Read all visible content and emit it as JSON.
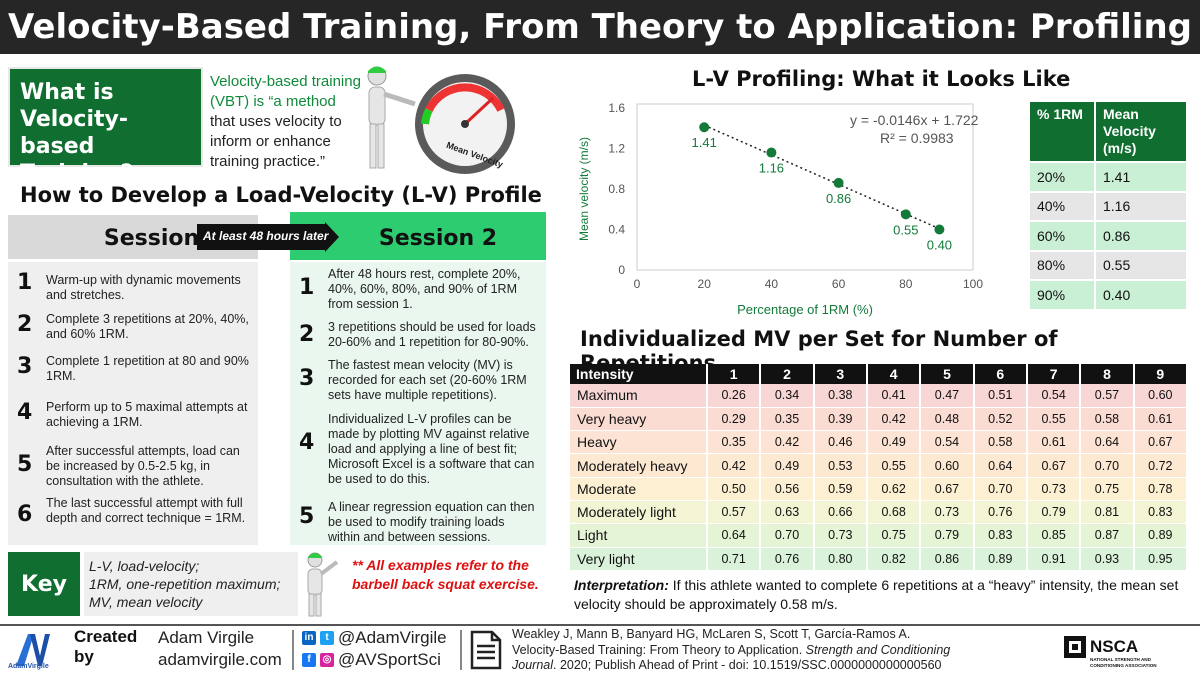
{
  "header": {
    "title": "Velocity-Based Training, From Theory to Application: Profiling"
  },
  "what": {
    "heading": "What is Velocity-based Training?",
    "definition_lines": [
      "Velocity-based training",
      "(VBT) is “a method",
      "that uses velocity to",
      "inform or enhance",
      "training practice.”"
    ],
    "gauge_label": "Mean Velocity"
  },
  "how": {
    "title": "How to Develop a Load-Velocity (L-V) Profile",
    "session1": "Session 1",
    "session2": "Session 2",
    "gap": "At least 48 hours later",
    "session1_steps": [
      {
        "n": "1",
        "text": "Warm-up with dynamic movements and stretches."
      },
      {
        "n": "2",
        "text": "Complete 3 repetitions at 20%, 40%, and 60% 1RM."
      },
      {
        "n": "3",
        "text": "Complete 1 repetition at 80 and 90% 1RM."
      },
      {
        "n": "4",
        "text": "Perform up to 5 maximal attempts at achieving a 1RM."
      },
      {
        "n": "5",
        "text": "After successful attempts, load can be increased by 0.5-2.5 kg, in consultation with the athlete."
      },
      {
        "n": "6",
        "text": "The last successful attempt with full depth and correct technique = 1RM."
      }
    ],
    "session2_steps": [
      {
        "n": "1",
        "text": "After 48 hours rest, complete 20%, 40%, 60%, 80%, and 90% of 1RM from session 1."
      },
      {
        "n": "2",
        "text": "3 repetitions should be used for loads 20-60% and 1 repetition for 80-90%."
      },
      {
        "n": "3",
        "text": "The fastest mean velocity (MV) is recorded for each set (20-60% 1RM sets have multiple repetitions)."
      },
      {
        "n": "4",
        "text": "Individualized L-V profiles can be made by plotting MV against relative load and applying a line of best fit; Microsoft Excel is a software that can be used to do this."
      },
      {
        "n": "5",
        "text": "A linear regression equation can then be used to modify training loads within and between sessions."
      }
    ]
  },
  "key": {
    "label": "Key",
    "lines": [
      "L-V, load-velocity;",
      "1RM, one-repetition maximum;",
      "MV, mean velocity"
    ],
    "note": "** All examples refer to the barbell back squat exercise."
  },
  "chart_data": {
    "type": "scatter",
    "title": "L-V Profiling: What it Looks Like",
    "xlabel": "Percentage of 1RM (%)",
    "ylabel": "Mean velocity (m/s)",
    "xlim": [
      0,
      100
    ],
    "ylim": [
      0,
      1.6
    ],
    "xticks": [
      0,
      20,
      40,
      60,
      80,
      100
    ],
    "yticks": [
      0,
      0.4,
      0.8,
      1.2,
      1.6
    ],
    "x": [
      20,
      40,
      60,
      80,
      90
    ],
    "y": [
      1.41,
      1.16,
      0.86,
      0.55,
      0.4
    ],
    "point_labels": [
      "1.41",
      "1.16",
      "0.86",
      "0.55",
      "0.40"
    ],
    "trendline": {
      "slope": -0.0146,
      "intercept": 1.722,
      "x_range": [
        20,
        90
      ]
    },
    "equation": "y = -0.0146x + 1.722",
    "r2": "R² = 0.9983",
    "color": "#137a3a"
  },
  "profile_table": {
    "headers": [
      "% 1RM",
      "Mean Velocity (m/s)"
    ],
    "rows": [
      [
        "20%",
        "1.41"
      ],
      [
        "40%",
        "1.16"
      ],
      [
        "60%",
        "0.86"
      ],
      [
        "80%",
        "0.55"
      ],
      [
        "90%",
        "0.40"
      ]
    ]
  },
  "reps_table": {
    "title": "Individualized MV per Set for Number of Repetitions",
    "headers": [
      "Intensity",
      "1",
      "2",
      "3",
      "4",
      "5",
      "6",
      "7",
      "8",
      "9"
    ],
    "rows": [
      {
        "intensity": "Maximum",
        "values": [
          "0.26",
          "0.34",
          "0.38",
          "0.41",
          "0.47",
          "0.51",
          "0.54",
          "0.57",
          "0.60"
        ],
        "color": "#f9d6d6"
      },
      {
        "intensity": "Very heavy",
        "values": [
          "0.29",
          "0.35",
          "0.39",
          "0.42",
          "0.48",
          "0.52",
          "0.55",
          "0.58",
          "0.61"
        ],
        "color": "#fbdcd3"
      },
      {
        "intensity": "Heavy",
        "values": [
          "0.35",
          "0.42",
          "0.46",
          "0.49",
          "0.54",
          "0.58",
          "0.61",
          "0.64",
          "0.67"
        ],
        "color": "#fce3d3"
      },
      {
        "intensity": "Moderately heavy",
        "values": [
          "0.42",
          "0.49",
          "0.53",
          "0.55",
          "0.60",
          "0.64",
          "0.67",
          "0.70",
          "0.72"
        ],
        "color": "#fde8d2"
      },
      {
        "intensity": "Moderate",
        "values": [
          "0.50",
          "0.56",
          "0.59",
          "0.62",
          "0.67",
          "0.70",
          "0.73",
          "0.75",
          "0.78"
        ],
        "color": "#fdf0d2"
      },
      {
        "intensity": "Moderately light",
        "values": [
          "0.57",
          "0.63",
          "0.66",
          "0.68",
          "0.73",
          "0.76",
          "0.79",
          "0.81",
          "0.83"
        ],
        "color": "#f3f4d3"
      },
      {
        "intensity": "Light",
        "values": [
          "0.64",
          "0.70",
          "0.73",
          "0.75",
          "0.79",
          "0.83",
          "0.85",
          "0.87",
          "0.89"
        ],
        "color": "#e6f4d6"
      },
      {
        "intensity": "Very light",
        "values": [
          "0.71",
          "0.76",
          "0.80",
          "0.82",
          "0.86",
          "0.89",
          "0.91",
          "0.93",
          "0.95"
        ],
        "color": "#dbf2da"
      }
    ],
    "interpretation_label": "Interpretation:",
    "interpretation_text": " If this athlete wanted to complete 6 repetitions at a “heavy” intensity, the mean set velocity should be approximately 0.58 m/s."
  },
  "footer": {
    "logo_text": "AV",
    "logo_sub": "AdamVirgile",
    "created_by": "Created by",
    "author_name": "Adam Virgile",
    "website": "adamvirgile.com",
    "handle1": "@AdamVirgile",
    "handle2": "@AVSportSci",
    "citation_line1": "Weakley J, Mann B, Banyard HG, McLaren S, Scott T, García-Ramos A.",
    "citation_line2a": "Velocity-Based Training: From Theory to Application. ",
    "citation_line2b": "Strength and Conditioning",
    "citation_line3a": "Journal",
    "citation_line3b": ". 2020; Publish Ahead of Print - doi: 10.1519/SSC.0000000000000560",
    "nsca_name": "NSCA",
    "nsca_sub": "NATIONAL STRENGTH AND CONDITIONING ASSOCIATION"
  }
}
